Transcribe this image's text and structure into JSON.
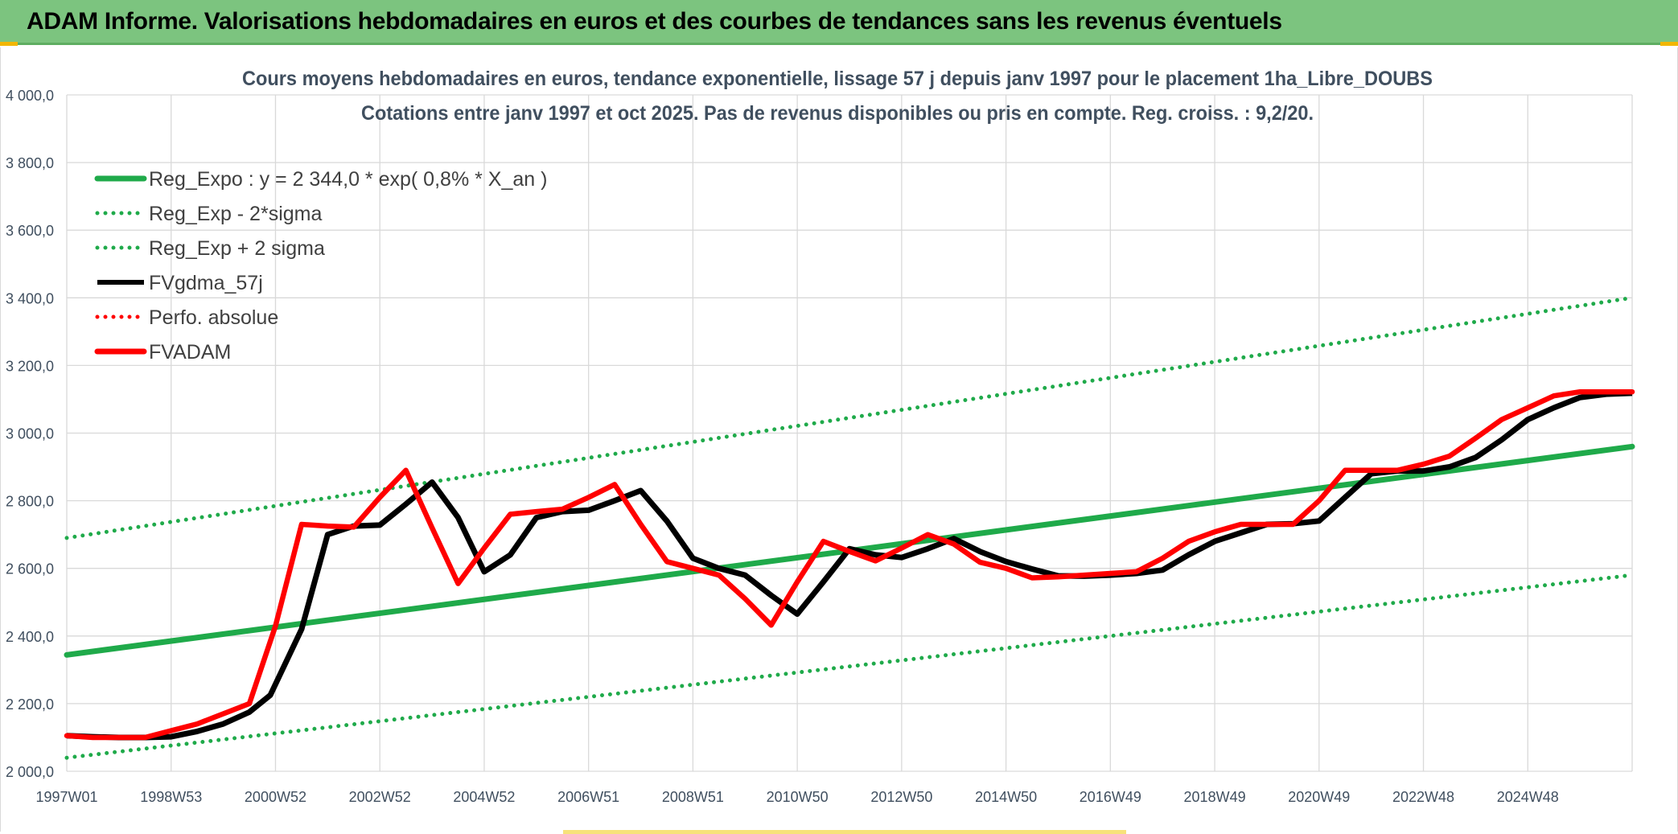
{
  "header": {
    "title": "ADAM Informe. Valorisations hebdomadaires en euros et des courbes de tendances sans les revenus éventuels"
  },
  "colors": {
    "header_bg": "#7cc47f",
    "green": "#1faa4a",
    "black": "#000000",
    "red": "#ff0000",
    "grid": "#d9d9d9",
    "text": "#404f5f"
  },
  "chart_data": {
    "type": "line",
    "title": "Cours moyens hebdomadaires en euros, tendance exponentielle, lissage 57 j depuis janv 1997 pour le placement 1ha_Libre_DOUBS",
    "subtitle": "Cotations entre janv 1997 et oct 2025. Pas de revenus disponibles ou pris en compte. Reg. croiss. : 9,2/20.",
    "xlabel": "",
    "ylabel": "",
    "ylim": [
      2000,
      4000
    ],
    "yticks": [
      2000,
      2200,
      2400,
      2600,
      2800,
      3000,
      3200,
      3400,
      3600,
      3800,
      4000
    ],
    "ytick_labels": [
      "2 000,0",
      "2 200,0",
      "2 400,0",
      "2 600,0",
      "2 800,0",
      "3 000,0",
      "3 200,0",
      "3 400,0",
      "3 600,0",
      "3 800,0",
      "4 000,0"
    ],
    "xlim": [
      0,
      30
    ],
    "xtick_labels": [
      "1997W01",
      "1998W53",
      "2000W52",
      "2002W52",
      "2004W52",
      "2006W51",
      "2008W51",
      "2010W50",
      "2012W50",
      "2014W50",
      "2016W49",
      "2018W49",
      "2020W49",
      "2022W48",
      "2024W48"
    ],
    "grid": true,
    "legend_position": "top-left",
    "series": [
      {
        "name": "Reg_Expo : y = 2 344,0 * exp( 0,8% *  X_an )",
        "style": "solid-thick",
        "color": "#1faa4a",
        "x": [
          0,
          30
        ],
        "y": [
          2344,
          2960
        ]
      },
      {
        "name": "Reg_Exp - 2*sigma",
        "style": "dotted",
        "color": "#1faa4a",
        "x": [
          0,
          30
        ],
        "y": [
          2040,
          2580
        ]
      },
      {
        "name": "Reg_Exp + 2 sigma",
        "style": "dotted",
        "color": "#1faa4a",
        "x": [
          0,
          30
        ],
        "y": [
          2690,
          3400
        ]
      },
      {
        "name": "FVgdma_57j",
        "style": "solid",
        "color": "#000000",
        "x": [
          0,
          0.5,
          1.0,
          1.5,
          2.0,
          2.5,
          3.0,
          3.5,
          3.9,
          4.5,
          5.0,
          5.5,
          6.0,
          6.5,
          7.0,
          7.5,
          8.0,
          8.5,
          9.0,
          9.5,
          10.0,
          10.5,
          11.0,
          11.5,
          12.0,
          12.5,
          13.0,
          13.5,
          14.0,
          14.5,
          15.0,
          15.5,
          16.0,
          16.5,
          17.0,
          17.5,
          18.0,
          18.5,
          19.0,
          19.5,
          20.0,
          20.5,
          21.0,
          21.5,
          22.0,
          22.5,
          23.0,
          23.5,
          24.0,
          24.5,
          25.0,
          25.5,
          26.0,
          26.5,
          27.0,
          27.5,
          28.0,
          28.5,
          29.0,
          29.5,
          30.0
        ],
        "y": [
          2105,
          2102,
          2100,
          2100,
          2102,
          2118,
          2140,
          2175,
          2225,
          2420,
          2700,
          2725,
          2728,
          2790,
          2855,
          2750,
          2590,
          2640,
          2750,
          2768,
          2772,
          2800,
          2830,
          2740,
          2630,
          2600,
          2580,
          2520,
          2465,
          2560,
          2658,
          2640,
          2632,
          2658,
          2688,
          2650,
          2620,
          2598,
          2578,
          2577,
          2580,
          2585,
          2595,
          2640,
          2680,
          2705,
          2730,
          2732,
          2740,
          2810,
          2880,
          2888,
          2888,
          2900,
          2928,
          2980,
          3040,
          3075,
          3105,
          3115,
          3118
        ]
      },
      {
        "name": "Perfo. absolue",
        "style": "dotted",
        "color": "#ff0000",
        "x": [],
        "y": []
      },
      {
        "name": "FVADAM",
        "style": "solid-thick",
        "color": "#ff0000",
        "x": [
          0,
          0.5,
          1.0,
          1.5,
          2.0,
          2.5,
          3.0,
          3.5,
          4.0,
          4.5,
          5.0,
          5.5,
          6.0,
          6.5,
          7.0,
          7.5,
          8.0,
          8.5,
          9.0,
          9.5,
          10.0,
          10.5,
          11.0,
          11.5,
          12.0,
          12.5,
          13.0,
          13.5,
          14.0,
          14.5,
          15.0,
          15.5,
          16.0,
          16.5,
          17.0,
          17.5,
          18.0,
          18.5,
          19.0,
          19.5,
          20.0,
          20.5,
          21.0,
          21.5,
          22.0,
          22.5,
          23.0,
          23.5,
          24.0,
          24.5,
          25.0,
          25.5,
          26.0,
          26.5,
          27.0,
          27.5,
          28.0,
          28.5,
          29.0,
          29.5,
          30.0
        ],
        "y": [
          2105,
          2100,
          2100,
          2100,
          2120,
          2140,
          2170,
          2200,
          2430,
          2730,
          2725,
          2722,
          2810,
          2890,
          2720,
          2555,
          2660,
          2760,
          2768,
          2775,
          2810,
          2848,
          2730,
          2620,
          2600,
          2580,
          2510,
          2432,
          2560,
          2680,
          2650,
          2622,
          2660,
          2700,
          2672,
          2618,
          2600,
          2572,
          2575,
          2580,
          2585,
          2590,
          2630,
          2680,
          2708,
          2730,
          2730,
          2730,
          2800,
          2890,
          2890,
          2890,
          2908,
          2932,
          2985,
          3040,
          3075,
          3110,
          3122,
          3122,
          3122
        ]
      }
    ]
  }
}
